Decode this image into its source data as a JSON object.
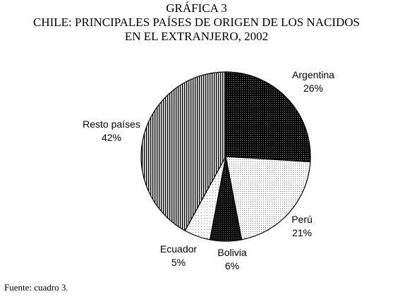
{
  "header": {
    "figure_number": "GRÁFICA 3",
    "title_line_1": "CHILE: PRINCIPALES PAÍSES DE ORIGEN DE LOS NACIDOS",
    "title_line_2": "EN EL EXTRANJERO, 2002"
  },
  "chart_data": {
    "type": "pie",
    "title": "CHILE: PRINCIPALES PAÍSES DE ORIGEN DE LOS NACIDOS EN EL EXTRANJERO, 2002",
    "slices": [
      {
        "label": "Argentina",
        "value": 26,
        "value_label": "26%",
        "fill": "dark-dots"
      },
      {
        "label": "Perú",
        "value": 21,
        "value_label": "21%",
        "fill": "light-dots"
      },
      {
        "label": "Bolivia",
        "value": 6,
        "value_label": "6%",
        "fill": "black-dots"
      },
      {
        "label": "Ecuador",
        "value": 5,
        "value_label": "5%",
        "fill": "sparse-dots"
      },
      {
        "label": "Resto países",
        "value": 42,
        "value_label": "42%",
        "fill": "vertical-lines"
      }
    ],
    "start_angle_deg": 0,
    "direction": "clockwise"
  },
  "footer": {
    "source": "Fuente: cuadro 3."
  }
}
